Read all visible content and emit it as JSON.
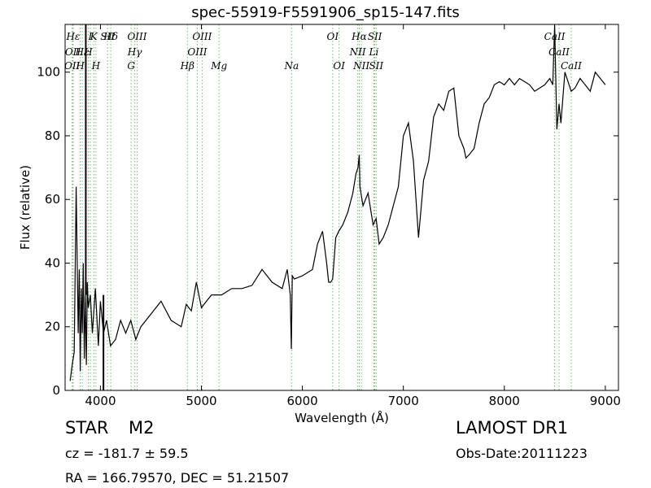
{
  "chart_data": {
    "type": "line",
    "title": "spec-55919-F5591906_sp15-147.fits",
    "xlabel": "Wavelength (Å)",
    "ylabel": "Flux (relative)",
    "xlim": [
      3650,
      9130
    ],
    "ylim": [
      0,
      115
    ],
    "xticks": [
      4000,
      5000,
      6000,
      7000,
      8000,
      9000
    ],
    "yticks": [
      0,
      20,
      40,
      60,
      80,
      100
    ],
    "grid": false,
    "series": [
      {
        "x": [
          3700,
          3720,
          3740,
          3760,
          3780,
          3790,
          3800,
          3810,
          3820,
          3830,
          3840,
          3850,
          3860,
          3870,
          3880,
          3900,
          3920,
          3950,
          3980,
          4000,
          4030,
          4060,
          4100,
          4150,
          4200,
          4250,
          4300,
          4350,
          4400,
          4500,
          4600,
          4700,
          4800,
          4850,
          4900,
          4950,
          5000,
          5050,
          5100,
          5200,
          5300,
          5400,
          5500,
          5600,
          5700,
          5800,
          5850,
          5880,
          5890,
          5900,
          5920,
          6000,
          6100,
          6150,
          6200,
          6240,
          6260,
          6280,
          6300,
          6330,
          6360,
          6400,
          6450,
          6500,
          6530,
          6550,
          6563,
          6570,
          6600,
          6650,
          6700,
          6730,
          6760,
          6800,
          6850,
          6900,
          6950,
          7000,
          7050,
          7100,
          7150,
          7200,
          7250,
          7300,
          7350,
          7400,
          7450,
          7500,
          7550,
          7600,
          7620,
          7650,
          7700,
          7750,
          7800,
          7850,
          7900,
          7950,
          8000,
          8050,
          8100,
          8150,
          8200,
          8250,
          8300,
          8350,
          8400,
          8450,
          8480,
          8498,
          8520,
          8542,
          8560,
          8600,
          8662,
          8700,
          8750,
          8800,
          8850,
          8900,
          8950,
          9000
        ],
        "y": [
          3,
          8,
          12,
          64,
          18,
          38,
          6,
          32,
          18,
          40,
          10,
          30,
          8,
          34,
          26,
          30,
          18,
          32,
          14,
          28,
          18,
          22,
          14,
          16,
          22,
          18,
          22,
          16,
          20,
          24,
          28,
          22,
          20,
          27,
          25,
          34,
          26,
          28,
          30,
          30,
          32,
          32,
          33,
          38,
          34,
          32,
          38,
          30,
          13,
          36,
          35,
          36,
          38,
          46,
          50,
          40,
          34,
          34,
          35,
          48,
          50,
          52,
          56,
          62,
          68,
          70,
          74,
          64,
          58,
          62,
          52,
          54,
          46,
          48,
          52,
          58,
          64,
          80,
          84,
          72,
          48,
          66,
          72,
          86,
          90,
          88,
          94,
          95,
          80,
          76,
          73,
          74,
          76,
          84,
          90,
          92,
          96,
          97,
          96,
          98,
          96,
          98,
          97,
          96,
          94,
          95,
          96,
          98,
          96,
          115,
          82,
          90,
          84,
          100,
          94,
          95,
          98,
          96,
          94,
          100,
          98,
          96
        ]
      }
    ],
    "spikes": [
      {
        "x": 3855,
        "y": 115
      },
      {
        "x": 4030,
        "y": -1
      }
    ],
    "line_markers": [
      {
        "label": "Hε",
        "x": 3730,
        "row": 1
      },
      {
        "label": "K",
        "x": 3934,
        "row": 1
      },
      {
        "label": "Hδ",
        "x": 4102,
        "row": 1
      },
      {
        "label": "OIII",
        "x": 4363,
        "row": 1
      },
      {
        "label": "OIII",
        "x": 5007,
        "row": 1
      },
      {
        "label": "OI",
        "x": 6300,
        "row": 1
      },
      {
        "label": "Hα",
        "x": 6563,
        "row": 1
      },
      {
        "label": "SII",
        "x": 6717,
        "row": 1
      },
      {
        "label": "CaII",
        "x": 8498,
        "row": 1
      },
      {
        "label": "OII",
        "x": 3727,
        "row": 2
      },
      {
        "label": "Hε",
        "x": 3820,
        "row": 2
      },
      {
        "label": "H",
        "x": 3880,
        "row": 2
      },
      {
        "label": "Hγ",
        "x": 4340,
        "row": 2
      },
      {
        "label": "OIII",
        "x": 4959,
        "row": 2
      },
      {
        "label": "NII",
        "x": 6548,
        "row": 2
      },
      {
        "label": "Li",
        "x": 6708,
        "row": 2
      },
      {
        "label": "CaII",
        "x": 8542,
        "row": 2
      },
      {
        "label": "OII",
        "x": 3720,
        "row": 3
      },
      {
        "label": "H",
        "x": 3800,
        "row": 3
      },
      {
        "label": "H",
        "x": 3955,
        "row": 3
      },
      {
        "label": "G",
        "x": 4304,
        "row": 3
      },
      {
        "label": "Hβ",
        "x": 4861,
        "row": 3
      },
      {
        "label": "Mg",
        "x": 5175,
        "row": 3
      },
      {
        "label": "Na",
        "x": 5893,
        "row": 3
      },
      {
        "label": "OI",
        "x": 6363,
        "row": 3
      },
      {
        "label": "NII",
        "x": 6584,
        "row": 3
      },
      {
        "label": "SII",
        "x": 6731,
        "row": 3
      },
      {
        "label": "CaII",
        "x": 8662,
        "row": 3
      },
      {
        "label": "I",
        "x": 3900,
        "row": 1
      },
      {
        "label": "SII",
        "x": 4070,
        "row": 1
      }
    ]
  },
  "info": {
    "object_class": "STAR",
    "subclass": "M2",
    "survey": "LAMOST DR1",
    "redshift": "cz = -181.7 ± 59.5",
    "obs_date": "Obs-Date:20111223",
    "coords": "RA = 166.79570, DEC = 51.21507"
  }
}
